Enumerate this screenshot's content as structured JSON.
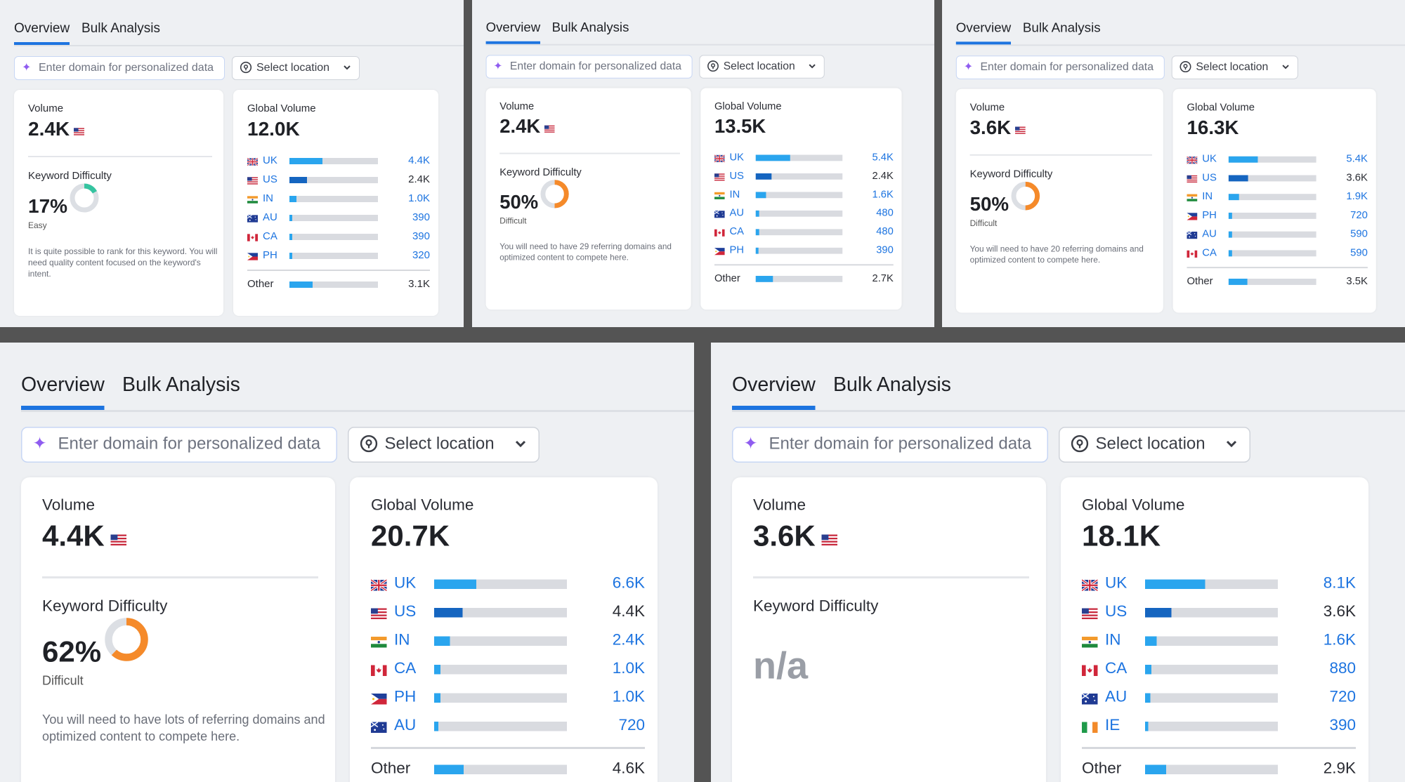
{
  "tabs": {
    "overview": "Overview",
    "bulk": "Bulk Analysis"
  },
  "domain_placeholder": "Enter domain for personalized data",
  "location_label": "Select location",
  "volume_label": "Volume",
  "global_label": "Global Volume",
  "kd_label": "Keyword Difficulty",
  "other_label": "Other",
  "colors": {
    "accent": "#1d74e0",
    "bar_light": "#2aa5ee",
    "bar_dark": "#1565c0",
    "track": "#d9dbe0",
    "easy": "#35c4a0",
    "difficult": "#f58a2a"
  },
  "panels": [
    {
      "volume": "2.4K",
      "kd_percent": "17%",
      "kd_level": "Easy",
      "kd_progress": 0.17,
      "kd_color": "#35c4a0",
      "kd_note": "It is quite possible to rank for this keyword. You will need quality content focused on the keyword's intent.",
      "global_volume": "12.0K",
      "countries": [
        {
          "code": "UK",
          "value": "4.4K",
          "share": 0.37,
          "flag": "uk-flag"
        },
        {
          "code": "US",
          "value": "2.4K",
          "share": 0.2,
          "flag": "us-flag"
        },
        {
          "code": "IN",
          "value": "1.0K",
          "share": 0.08,
          "flag": "in-flag"
        },
        {
          "code": "AU",
          "value": "390",
          "share": 0.03,
          "flag": "au-flag"
        },
        {
          "code": "CA",
          "value": "390",
          "share": 0.03,
          "flag": "ca-flag"
        },
        {
          "code": "PH",
          "value": "320",
          "share": 0.03,
          "flag": "ph-flag"
        }
      ],
      "other_value": "3.1K",
      "other_share": 0.26
    },
    {
      "volume": "2.4K",
      "kd_percent": "50%",
      "kd_level": "Difficult",
      "kd_progress": 0.5,
      "kd_color": "#f58a2a",
      "kd_note": "You will need to have 29 referring domains and optimized content to compete here.",
      "global_volume": "13.5K",
      "countries": [
        {
          "code": "UK",
          "value": "5.4K",
          "share": 0.4,
          "flag": "uk-flag"
        },
        {
          "code": "US",
          "value": "2.4K",
          "share": 0.18,
          "flag": "us-flag"
        },
        {
          "code": "IN",
          "value": "1.6K",
          "share": 0.12,
          "flag": "in-flag"
        },
        {
          "code": "AU",
          "value": "480",
          "share": 0.04,
          "flag": "au-flag"
        },
        {
          "code": "CA",
          "value": "480",
          "share": 0.04,
          "flag": "ca-flag"
        },
        {
          "code": "PH",
          "value": "390",
          "share": 0.03,
          "flag": "ph-flag"
        }
      ],
      "other_value": "2.7K",
      "other_share": 0.2
    },
    {
      "volume": "3.6K",
      "kd_percent": "50%",
      "kd_level": "Difficult",
      "kd_progress": 0.5,
      "kd_color": "#f58a2a",
      "kd_note": "You will need to have 20 referring domains and optimized content to compete here.",
      "global_volume": "16.3K",
      "countries": [
        {
          "code": "UK",
          "value": "5.4K",
          "share": 0.33,
          "flag": "uk-flag"
        },
        {
          "code": "US",
          "value": "3.6K",
          "share": 0.22,
          "flag": "us-flag"
        },
        {
          "code": "IN",
          "value": "1.9K",
          "share": 0.12,
          "flag": "in-flag"
        },
        {
          "code": "PH",
          "value": "720",
          "share": 0.04,
          "flag": "ph-flag"
        },
        {
          "code": "AU",
          "value": "590",
          "share": 0.04,
          "flag": "au-flag"
        },
        {
          "code": "CA",
          "value": "590",
          "share": 0.04,
          "flag": "ca-flag"
        }
      ],
      "other_value": "3.5K",
      "other_share": 0.21
    },
    {
      "volume": "4.4K",
      "kd_percent": "62%",
      "kd_level": "Difficult",
      "kd_progress": 0.62,
      "kd_color": "#f58a2a",
      "kd_note": "You will need to have lots of referring domains and optimized content to compete here.",
      "global_volume": "20.7K",
      "countries": [
        {
          "code": "UK",
          "value": "6.6K",
          "share": 0.32,
          "flag": "uk-flag"
        },
        {
          "code": "US",
          "value": "4.4K",
          "share": 0.21,
          "flag": "us-flag"
        },
        {
          "code": "IN",
          "value": "2.4K",
          "share": 0.12,
          "flag": "in-flag"
        },
        {
          "code": "CA",
          "value": "1.0K",
          "share": 0.05,
          "flag": "ca-flag"
        },
        {
          "code": "PH",
          "value": "1.0K",
          "share": 0.05,
          "flag": "ph-flag"
        },
        {
          "code": "AU",
          "value": "720",
          "share": 0.03,
          "flag": "au-flag"
        }
      ],
      "other_value": "4.6K",
      "other_share": 0.22
    },
    {
      "volume": "3.6K",
      "kd_percent": "n/a",
      "kd_level": "",
      "kd_progress": null,
      "kd_color": "",
      "kd_note": "",
      "global_volume": "18.1K",
      "countries": [
        {
          "code": "UK",
          "value": "8.1K",
          "share": 0.45,
          "flag": "uk-flag"
        },
        {
          "code": "US",
          "value": "3.6K",
          "share": 0.2,
          "flag": "us-flag"
        },
        {
          "code": "IN",
          "value": "1.6K",
          "share": 0.09,
          "flag": "in-flag"
        },
        {
          "code": "CA",
          "value": "880",
          "share": 0.05,
          "flag": "ca-flag"
        },
        {
          "code": "AU",
          "value": "720",
          "share": 0.04,
          "flag": "au-flag"
        },
        {
          "code": "IE",
          "value": "390",
          "share": 0.02,
          "flag": "ie-flag"
        }
      ],
      "other_value": "2.9K",
      "other_share": 0.16
    }
  ]
}
